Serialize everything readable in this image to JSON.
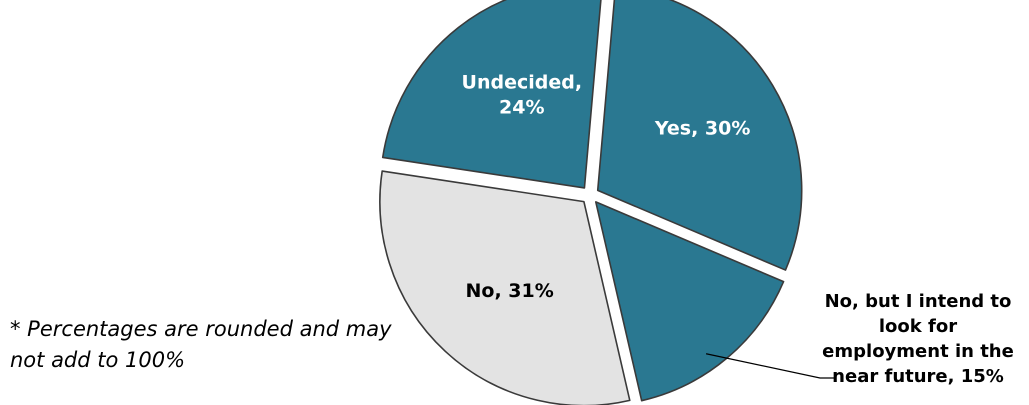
{
  "chart_data": {
    "type": "pie",
    "slices": [
      {
        "label": "Yes, 30%",
        "value": 30,
        "color": "#2a7891"
      },
      {
        "label": "No, but I intend to look for employment in the near future, 15%",
        "value": 15,
        "color": "#2a7891"
      },
      {
        "label": "No, 31%",
        "value": 31,
        "color": "#e3e3e3"
      },
      {
        "label": "Undecided, 24%",
        "value": 24,
        "color": "#2a7891"
      }
    ],
    "note": "* Percentages are rounded and may not add to 100%"
  }
}
